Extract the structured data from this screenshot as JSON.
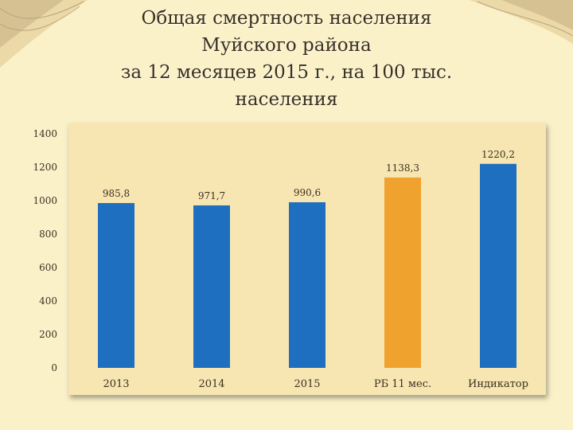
{
  "title": {
    "lines": [
      "Общая смертность населения",
      "Муйского района",
      "за 12 месяцев 2015 г., на 100 тыс.",
      "населения"
    ]
  },
  "colors": {
    "background": "#fbf1c9",
    "plot_area": "#f7e6b1",
    "bar_primary": "#1f6fc0",
    "bar_highlight": "#f0a22e"
  },
  "chart_data": {
    "type": "bar",
    "categories": [
      "2013",
      "2014",
      "2015",
      "РБ 11 мес.",
      "Индикатор"
    ],
    "values": [
      985.8,
      971.7,
      990.6,
      1138.3,
      1220.2
    ],
    "data_labels": [
      "985,8",
      "971,7",
      "990,6",
      "1138,3",
      "1220,2"
    ],
    "bar_colors": [
      "#1f6fc0",
      "#1f6fc0",
      "#1f6fc0",
      "#f0a22e",
      "#1f6fc0"
    ],
    "ylim": [
      0,
      1400
    ],
    "yticks": [
      0,
      200,
      400,
      600,
      800,
      1000,
      1200,
      1400
    ],
    "title": "",
    "xlabel": "",
    "ylabel": "",
    "grid": false,
    "legend": "none"
  }
}
